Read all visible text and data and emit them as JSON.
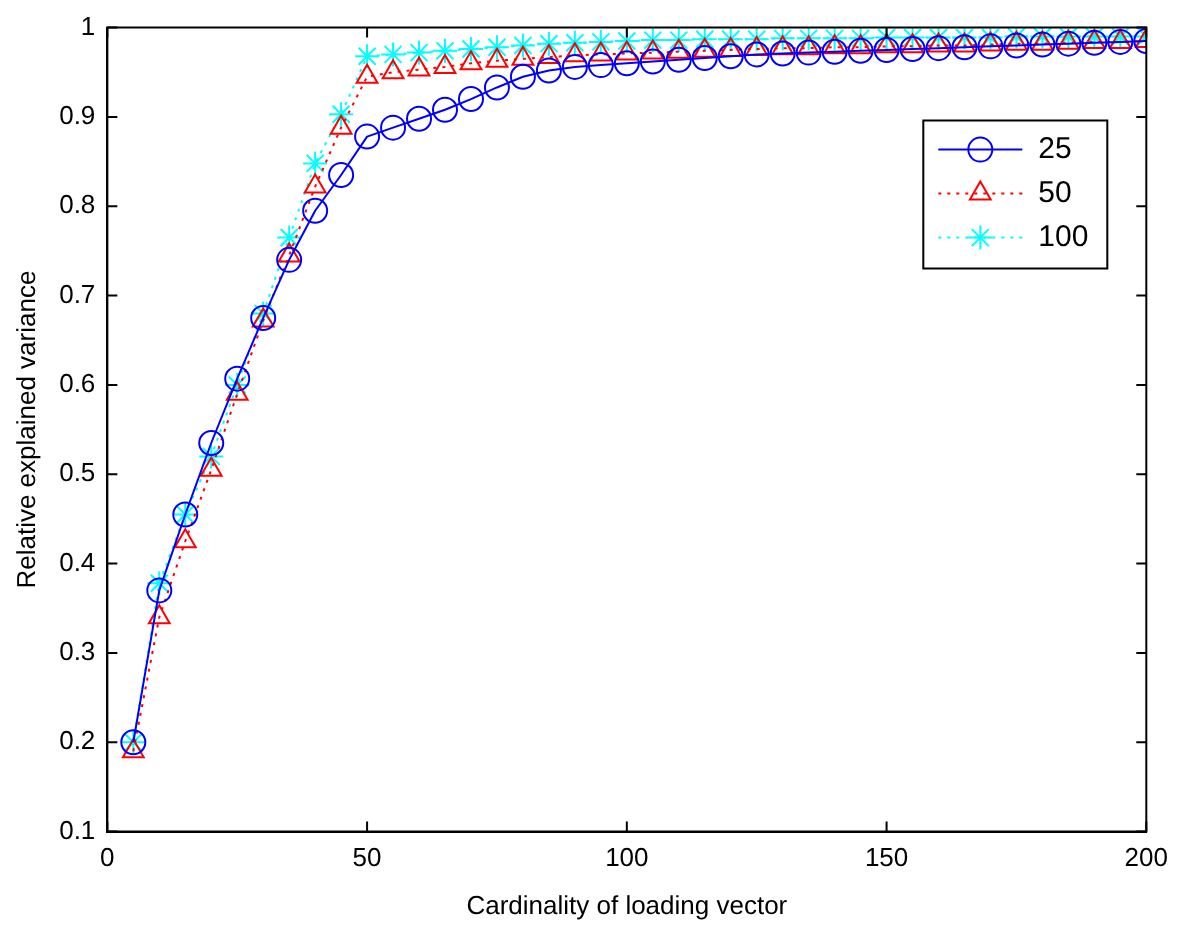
{
  "chart_data": {
    "type": "line",
    "xlabel": "Cardinality of loading vector",
    "ylabel": "Relative explained variance",
    "x": [
      5,
      10,
      15,
      20,
      25,
      30,
      35,
      40,
      45,
      50,
      55,
      60,
      65,
      70,
      75,
      80,
      85,
      90,
      95,
      100,
      105,
      110,
      115,
      120,
      125,
      130,
      135,
      140,
      145,
      150,
      155,
      160,
      165,
      170,
      175,
      180,
      185,
      190,
      195,
      200
    ],
    "series": [
      {
        "name": "25",
        "color": "#0000ff",
        "marker": "circle",
        "line_style": "solid",
        "values": [
          0.2,
          0.37,
          0.455,
          0.535,
          0.607,
          0.675,
          0.74,
          0.795,
          0.835,
          0.878,
          0.888,
          0.898,
          0.908,
          0.92,
          0.933,
          0.945,
          0.952,
          0.956,
          0.958,
          0.96,
          0.962,
          0.964,
          0.966,
          0.968,
          0.97,
          0.971,
          0.972,
          0.973,
          0.974,
          0.975,
          0.976,
          0.977,
          0.978,
          0.979,
          0.98,
          0.981,
          0.982,
          0.983,
          0.984,
          0.985
        ]
      },
      {
        "name": "50",
        "color": "#ff0000",
        "marker": "triangle",
        "line_style": "dotted",
        "values": [
          0.19,
          0.34,
          0.425,
          0.505,
          0.59,
          0.672,
          0.745,
          0.822,
          0.888,
          0.945,
          0.95,
          0.953,
          0.956,
          0.96,
          0.963,
          0.965,
          0.967,
          0.969,
          0.97,
          0.971,
          0.972,
          0.973,
          0.974,
          0.975,
          0.976,
          0.977,
          0.977,
          0.978,
          0.978,
          0.979,
          0.979,
          0.98,
          0.98,
          0.981,
          0.982,
          0.982,
          0.983,
          0.984,
          0.984,
          0.985
        ]
      },
      {
        "name": "100",
        "color": "#00ffff",
        "marker": "cross",
        "line_style": "dotted",
        "values": [
          0.2,
          0.378,
          0.455,
          0.52,
          0.6,
          0.68,
          0.765,
          0.848,
          0.903,
          0.968,
          0.97,
          0.972,
          0.974,
          0.976,
          0.978,
          0.98,
          0.982,
          0.983,
          0.984,
          0.985,
          0.986,
          0.986,
          0.987,
          0.987,
          0.987,
          0.988,
          0.988,
          0.988,
          0.988,
          0.989,
          0.989,
          0.989,
          0.989,
          0.989,
          0.99,
          0.99,
          0.99,
          0.99,
          0.99,
          0.99
        ]
      }
    ],
    "xlim": [
      0,
      200
    ],
    "xticks": [
      0,
      50,
      100,
      150,
      200
    ],
    "ylim": [
      0.1,
      1
    ],
    "yticks": [
      0.1,
      0.2,
      0.3,
      0.4,
      0.5,
      0.6,
      0.7,
      0.8,
      0.9,
      1
    ],
    "grid": false,
    "legend": "top right"
  }
}
